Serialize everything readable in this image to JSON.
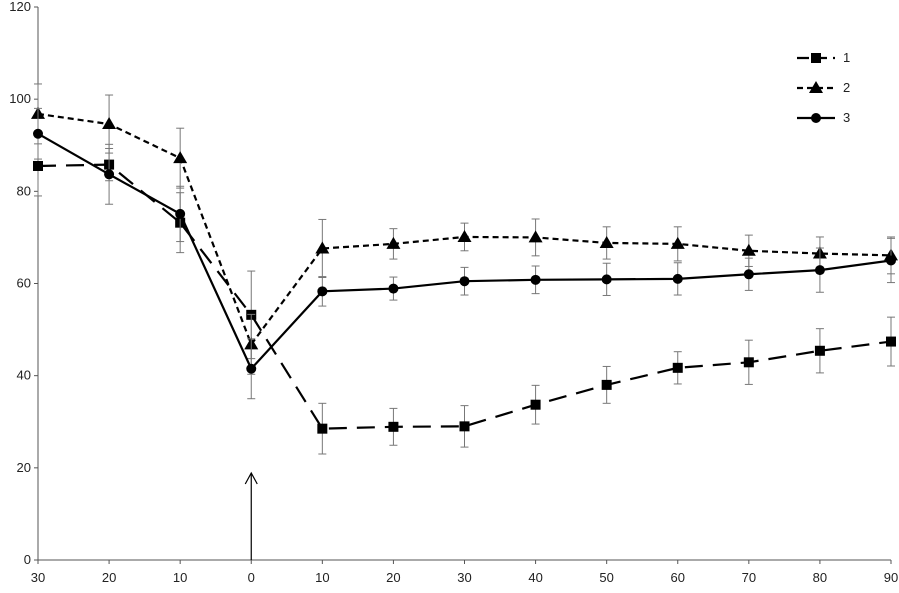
{
  "chart_data": {
    "type": "line",
    "title": "",
    "xlabel": "",
    "ylabel": "",
    "x": [
      -30,
      -20,
      -10,
      0,
      10,
      20,
      30,
      40,
      50,
      60,
      70,
      80,
      90
    ],
    "x_tick_labels": [
      "30",
      "20",
      "10",
      "0",
      "10",
      "20",
      "30",
      "40",
      "50",
      "60",
      "70",
      "80",
      "90"
    ],
    "xlim": [
      -30,
      90
    ],
    "ylim": [
      0,
      120
    ],
    "y_ticks": [
      0,
      20,
      40,
      60,
      80,
      100,
      120
    ],
    "grid": false,
    "legend_position": "top-right",
    "annotation": "arrow at x = 0 pointing upward",
    "series": [
      {
        "name": "1",
        "line_style": "long-dash",
        "marker": "square",
        "color": "#000000",
        "values": [
          85.5,
          85.8,
          73.2,
          53.2,
          28.5,
          28.9,
          29.0,
          33.7,
          38.0,
          41.7,
          42.9,
          45.4,
          47.4
        ],
        "errors": [
          6.5,
          3.5,
          6.5,
          9.5,
          5.5,
          4.0,
          4.5,
          4.2,
          4.0,
          3.5,
          4.8,
          4.8,
          5.3
        ]
      },
      {
        "name": "2",
        "line_style": "short-dash",
        "marker": "triangle",
        "color": "#000000",
        "values": [
          96.8,
          94.6,
          87.2,
          46.8,
          67.6,
          68.6,
          70.1,
          70.0,
          68.8,
          68.6,
          67.1,
          66.5,
          66.1
        ],
        "errors": [
          6.5,
          6.3,
          6.5,
          6.5,
          6.3,
          3.3,
          3.0,
          4.0,
          3.5,
          3.7,
          3.4,
          3.6,
          4.0
        ]
      },
      {
        "name": "3",
        "line_style": "solid",
        "marker": "circle",
        "color": "#000000",
        "values": [
          92.5,
          83.7,
          75.1,
          41.5,
          58.3,
          58.9,
          60.5,
          60.8,
          60.9,
          61.0,
          62.0,
          62.9,
          65.0
        ],
        "errors": [
          5.5,
          6.5,
          6.0,
          6.5,
          3.2,
          2.5,
          3.0,
          3.0,
          3.5,
          3.5,
          3.5,
          4.8,
          4.8
        ]
      }
    ]
  }
}
